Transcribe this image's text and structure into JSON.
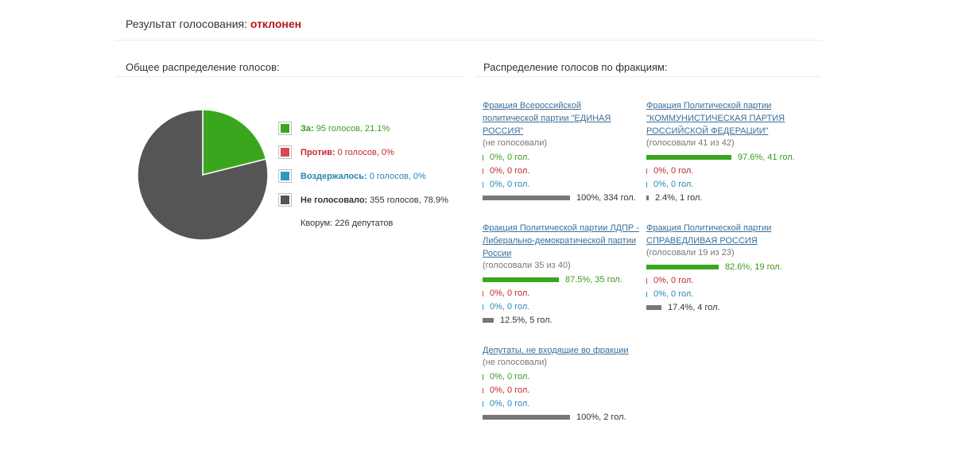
{
  "header": {
    "result_label": "Результат голосования:",
    "result_value": "отклонен"
  },
  "sections": {
    "overall_title": "Общее распределение голосов:",
    "factions_title": "Распределение голосов по фракциям:"
  },
  "colors": {
    "for": "#3aa61e",
    "against": "#d84a4f",
    "abstained": "#2a9bc0",
    "not_voted": "#555555",
    "status": "#b3141b",
    "link": "#3a6f9a"
  },
  "chart_data": {
    "type": "pie",
    "slices": [
      {
        "label": "За:",
        "text": "95 голосов, 21.1%",
        "value": 95,
        "percent": 21.1,
        "color": "#3aa61e"
      },
      {
        "label": "Против:",
        "text": "0 голосов, 0%",
        "value": 0,
        "percent": 0,
        "color": "#d84a4f"
      },
      {
        "label": "Воздержалось:",
        "text": "0 голосов, 0%",
        "value": 0,
        "percent": 0,
        "color": "#2a9bc0"
      },
      {
        "label": "Не голосовало:",
        "text": "355 голосов, 78.9%",
        "value": 355,
        "percent": 78.9,
        "color": "#555555"
      }
    ],
    "quorum": "Кворум: 226 депутатов"
  },
  "factions": [
    {
      "name": "Фракция Всероссийской политической партии \"ЕДИНАЯ РОССИЯ\"",
      "status": "(не голосовали)",
      "rows": [
        {
          "type": "for",
          "percent": 0,
          "text": "0%, 0 гол."
        },
        {
          "type": "against",
          "percent": 0,
          "text": "0%, 0 гол."
        },
        {
          "type": "abst",
          "percent": 0,
          "text": "0%, 0 гол."
        },
        {
          "type": "none",
          "percent": 100,
          "text": "100%, 334 гол."
        }
      ]
    },
    {
      "name": "Фракция Политической партии \"КОММУНИСТИЧЕСКАЯ ПАРТИЯ РОССИЙСКОЙ ФЕДЕРАЦИИ\"",
      "status": "(голосовали 41 из 42)",
      "rows": [
        {
          "type": "for",
          "percent": 97.6,
          "text": "97.6%, 41 гол."
        },
        {
          "type": "against",
          "percent": 0,
          "text": "0%, 0 гол."
        },
        {
          "type": "abst",
          "percent": 0,
          "text": "0%, 0 гол."
        },
        {
          "type": "none",
          "percent": 2.4,
          "text": "2.4%, 1 гол."
        }
      ]
    },
    {
      "name": "Фракция Политической партии ЛДПР - Либерально-демократической партии России",
      "status": "(голосовали 35 из 40)",
      "rows": [
        {
          "type": "for",
          "percent": 87.5,
          "text": "87.5%, 35 гол."
        },
        {
          "type": "against",
          "percent": 0,
          "text": "0%, 0 гол."
        },
        {
          "type": "abst",
          "percent": 0,
          "text": "0%, 0 гол."
        },
        {
          "type": "none",
          "percent": 12.5,
          "text": "12.5%, 5 гол."
        }
      ]
    },
    {
      "name": "Фракция Политической партии СПРАВЕДЛИВАЯ РОССИЯ",
      "status": "(голосовали 19 из 23)",
      "rows": [
        {
          "type": "for",
          "percent": 82.6,
          "text": "82.6%, 19 гол."
        },
        {
          "type": "against",
          "percent": 0,
          "text": "0%, 0 гол."
        },
        {
          "type": "abst",
          "percent": 0,
          "text": "0%, 0 гол."
        },
        {
          "type": "none",
          "percent": 17.4,
          "text": "17.4%, 4 гол."
        }
      ]
    },
    {
      "name": "Депутаты, не входящие во фракции",
      "status": "(не голосовали)",
      "rows": [
        {
          "type": "for",
          "percent": 0,
          "text": "0%, 0 гол."
        },
        {
          "type": "against",
          "percent": 0,
          "text": "0%, 0 гол."
        },
        {
          "type": "abst",
          "percent": 0,
          "text": "0%, 0 гол."
        },
        {
          "type": "none",
          "percent": 100,
          "text": "100%, 2 гол."
        }
      ]
    }
  ]
}
